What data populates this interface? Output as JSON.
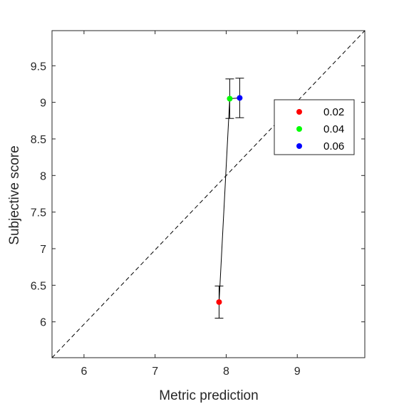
{
  "chart_data": {
    "type": "scatter",
    "title": "",
    "xlabel": "Metric prediction",
    "ylabel": "Subjective score",
    "xlim": [
      5.55,
      9.95
    ],
    "ylim": [
      5.51,
      9.98
    ],
    "xticks": [
      6,
      7,
      8,
      9
    ],
    "yticks": [
      6,
      6.5,
      7,
      7.5,
      8,
      8.5,
      9,
      9.5
    ],
    "xtick_labels": [
      "6",
      "7",
      "8",
      "9"
    ],
    "ytick_labels": [
      "6",
      "6.5",
      "7",
      "7.5",
      "8",
      "8.5",
      "9",
      "9.5"
    ],
    "grid": false,
    "legend_position": "right",
    "reference_line": {
      "style": "dashed",
      "from": [
        5.55,
        5.51
      ],
      "to": [
        9.95,
        9.98
      ]
    },
    "series": [
      {
        "name": "0.02",
        "color": "#ff0000",
        "x": 7.9,
        "y": 6.27,
        "err_low": 6.05,
        "err_high": 6.49
      },
      {
        "name": "0.04",
        "color": "#00ff00",
        "x": 8.05,
        "y": 9.05,
        "err_low": 8.78,
        "err_high": 9.32
      },
      {
        "name": "0.06",
        "color": "#0000ff",
        "x": 8.19,
        "y": 9.06,
        "err_low": 8.79,
        "err_high": 9.33
      }
    ]
  }
}
